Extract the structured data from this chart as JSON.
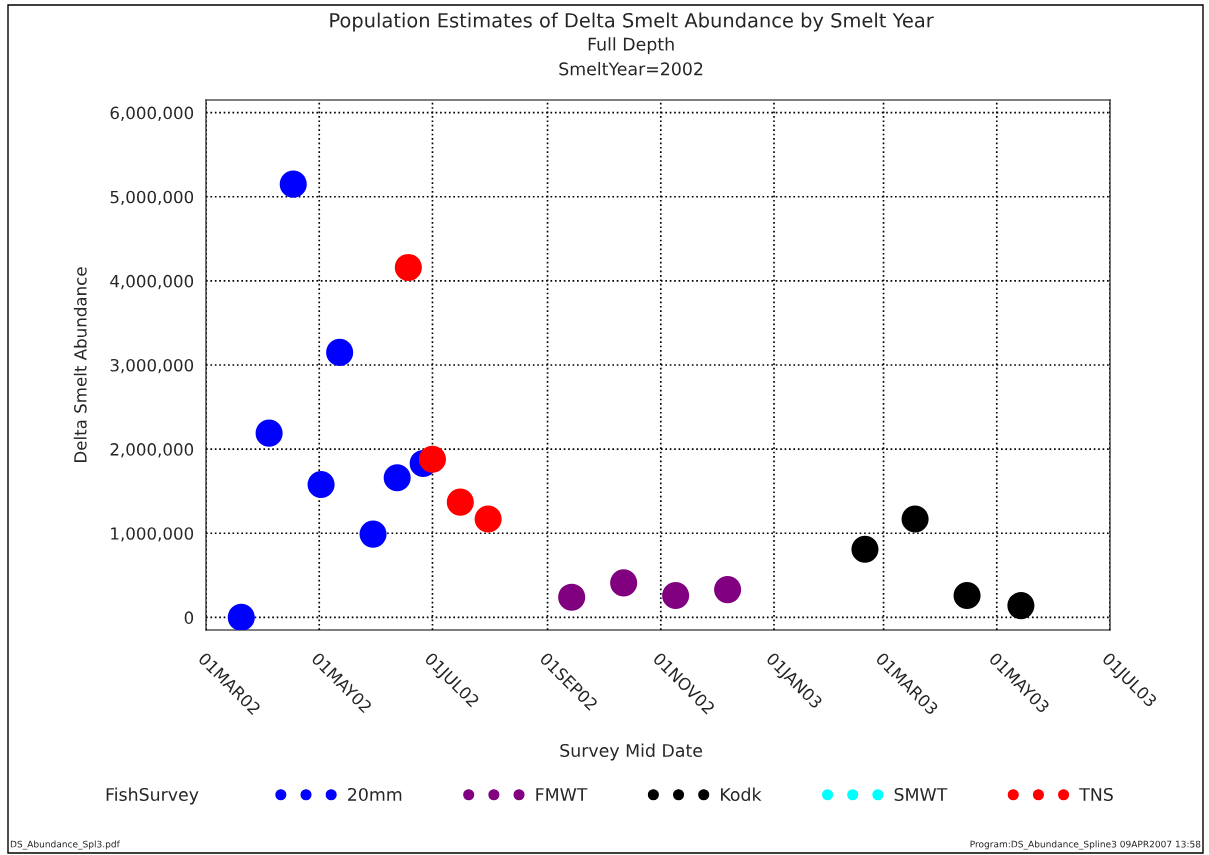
{
  "chart_data": {
    "type": "scatter",
    "title": "Population Estimates of Delta Smelt Abundance by Smelt Year",
    "subtitle": "Full Depth\nSmeltYear=2002",
    "xlabel": "Survey Mid Date",
    "ylabel": "Delta Smelt Abundance",
    "legend_title": "FishSurvey",
    "series": [
      {
        "name": "20mm",
        "color": "#0000ff",
        "x": [
          "2002-03-20",
          "2002-04-04",
          "2002-04-17",
          "2002-05-02",
          "2002-05-12",
          "2002-05-30",
          "2002-06-12",
          "2002-06-26"
        ],
        "values": [
          0,
          2190000,
          5150000,
          1580000,
          3150000,
          990000,
          1660000,
          1830000
        ]
      },
      {
        "name": "FMWT",
        "color": "#800080",
        "x": [
          "2002-09-14",
          "2002-10-12",
          "2002-11-09",
          "2002-12-07"
        ],
        "values": [
          240000,
          410000,
          260000,
          330000
        ]
      },
      {
        "name": "Kodk",
        "color": "#000000",
        "x": [
          "2003-02-19",
          "2003-03-18",
          "2003-04-15",
          "2003-05-14"
        ],
        "values": [
          810000,
          1170000,
          260000,
          140000
        ]
      },
      {
        "name": "SMWT",
        "color": "#00ffff"
      },
      {
        "name": "TNS",
        "color": "#ff0000",
        "x": [
          "2002-06-18",
          "2002-07-01",
          "2002-07-16",
          "2002-07-31"
        ],
        "values": [
          4160000,
          1880000,
          1370000,
          1170000
        ]
      }
    ],
    "xlim": [
      "2002-03-01",
      "2003-07-01"
    ],
    "xticks": [
      {
        "value": "2002-03-01",
        "label": "01MAR02"
      },
      {
        "value": "2002-05-01",
        "label": "01MAY02"
      },
      {
        "value": "2002-07-01",
        "label": "01JUL02"
      },
      {
        "value": "2002-09-01",
        "label": "01SEP02"
      },
      {
        "value": "2002-11-01",
        "label": "01NOV02"
      },
      {
        "value": "2003-01-01",
        "label": "01JAN03"
      },
      {
        "value": "2003-03-01",
        "label": "01MAR03"
      },
      {
        "value": "2003-05-01",
        "label": "01MAY03"
      },
      {
        "value": "2003-07-01",
        "label": "01JUL03"
      }
    ],
    "ylim": [
      -150000,
      6150000
    ],
    "yticks": [
      {
        "value": 0,
        "label": "0"
      },
      {
        "value": 1000000,
        "label": "1,000,000"
      },
      {
        "value": 2000000,
        "label": "2,000,000"
      },
      {
        "value": 3000000,
        "label": "3,000,000"
      },
      {
        "value": 4000000,
        "label": "4,000,000"
      },
      {
        "value": 5000000,
        "label": "5,000,000"
      },
      {
        "value": 6000000,
        "label": "6,000,000"
      }
    ],
    "grid": true,
    "legend": "bottom",
    "marker": "circle",
    "annotations": [
      "DS_Abundance_Spl3.pdf",
      "Program:DS_Abundance_Spline3 09APR2007 13:58"
    ]
  }
}
